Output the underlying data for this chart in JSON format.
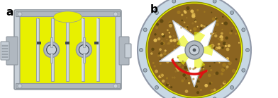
{
  "fig_width": 3.92,
  "fig_height": 1.39,
  "dpi": 100,
  "bg_color": "#ffffff",
  "label_a": "a",
  "label_b": "b",
  "label_fontsize": 11,
  "label_fontweight": "bold",
  "yellow": "#e8f000",
  "yellow2": "#d4e000",
  "silver": "#b0b8c0",
  "silver2": "#c8d0d8",
  "silver3": "#9098a0",
  "dark_gray": "#404850",
  "light_blue": "#c0d8e8",
  "brown": "#8B6914",
  "brown2": "#a07820",
  "red": "#dd1111",
  "white": "#ffffff",
  "outer_bg": "#d0dce8"
}
